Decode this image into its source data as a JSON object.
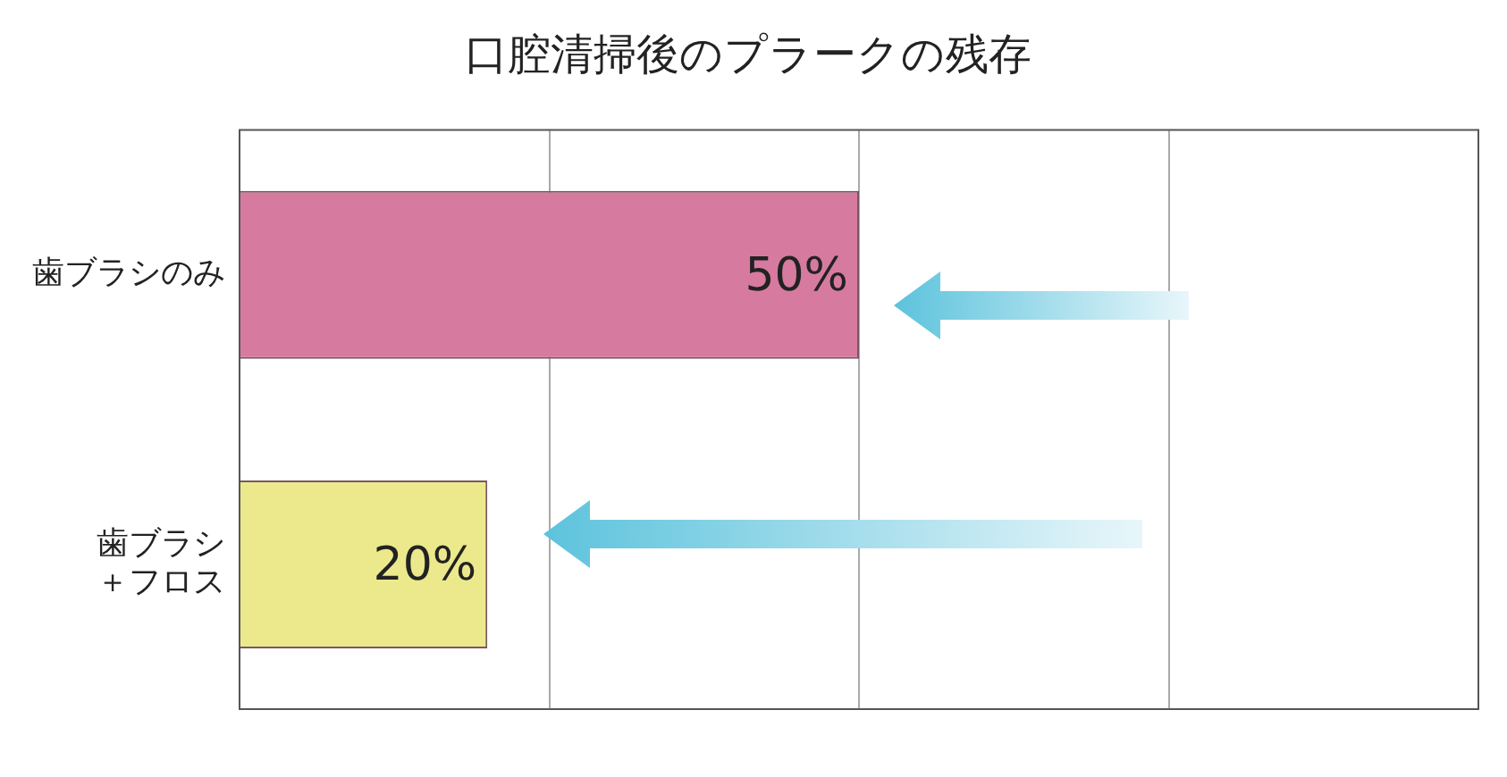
{
  "chart_data": {
    "type": "bar",
    "orientation": "horizontal",
    "title": "口腔清掃後のプラークの残存",
    "categories": [
      "歯ブラシのみ",
      "歯ブラシ＋フロス"
    ],
    "values": [
      50,
      20
    ],
    "colors": [
      "#d77a9f",
      "#ece98c"
    ],
    "value_labels": [
      "50%",
      "20%"
    ],
    "xlim": [
      0,
      100
    ],
    "xticks": [
      {
        "value": 0,
        "label": null
      },
      {
        "value": 25,
        "label": null
      },
      {
        "value": 50,
        "label": null
      },
      {
        "value": 75,
        "label": null
      },
      {
        "value": 100,
        "label": null
      }
    ],
    "grid": "x",
    "tick_labels": "y",
    "legend": false
  }
}
